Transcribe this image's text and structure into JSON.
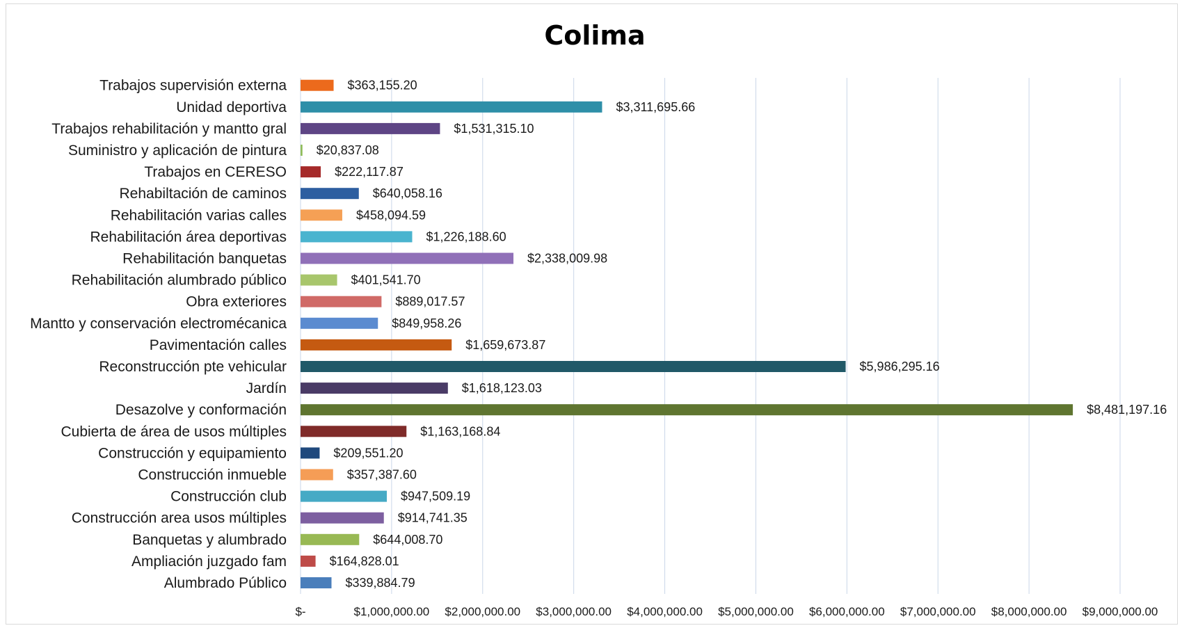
{
  "chart_data": {
    "type": "bar",
    "orientation": "horizontal",
    "title": "Colima",
    "xlabel": "",
    "ylabel": "",
    "xlim": [
      0,
      9000000
    ],
    "grid": "vertical",
    "legend": "none",
    "categories": [
      "Alumbrado Público",
      "Ampliación juzgado fam",
      "Banquetas y alumbrado",
      "Construcción area usos múltiples",
      "Construcción club",
      "Construcción inmueble",
      "Construcción y equipamiento",
      "Cubierta de área de usos múltiples",
      "Desazolve y conformación",
      "Jardín",
      "Reconstrucción pte vehicular",
      "Pavimentación calles",
      "Mantto y conservación electromécanica",
      "Obra exteriores",
      "Rehabilitación alumbrado público",
      "Rehabilitación banquetas",
      "Rehabilitación área deportivas",
      "Rehabilitación varias calles",
      "Rehabiltación de caminos",
      "Trabajos en CERESO",
      "Suministro y aplicación de pintura",
      "Trabajos rehabilitación y mantto gral",
      "Unidad deportiva",
      "Trabajos supervisión externa"
    ],
    "values": [
      339884.79,
      164828.01,
      644008.7,
      914741.35,
      947509.19,
      357387.6,
      209551.2,
      1163168.84,
      8481197.16,
      1618123.03,
      5986295.16,
      1659673.87,
      849958.26,
      889017.57,
      401541.7,
      2338009.98,
      1226188.6,
      458094.59,
      640058.16,
      222117.87,
      20837.08,
      1531315.1,
      3311695.66,
      363155.2
    ],
    "data_labels": [
      "$339,884.79",
      "$164,828.01",
      "$644,008.70",
      "$914,741.35",
      "$947,509.19",
      "$357,387.60",
      "$209,551.20",
      "$1,163,168.84",
      "$8,481,197.16",
      "$1,618,123.03",
      "$5,986,295.16",
      "$1,659,673.87",
      "$849,958.26",
      "$889,017.57",
      "$401,541.70",
      "$2,338,009.98",
      "$1,226,188.60",
      "$458,094.59",
      "$640,058.16",
      "$222,117.87",
      "$20,837.08",
      "$1,531,315.10",
      "$3,311,695.66",
      "$363,155.20"
    ],
    "colors": [
      "#4a7ebb",
      "#be4b48",
      "#98b954",
      "#7d5fa0",
      "#46aac5",
      "#f59d56",
      "#1f497d",
      "#7f2b29",
      "#5f7530",
      "#4a3b66",
      "#215968",
      "#c55a11",
      "#5b8bd0",
      "#d06a67",
      "#a8c66c",
      "#9070b8",
      "#4ab4cf",
      "#f5a055",
      "#2d5ea0",
      "#a52a2a",
      "#8fbc5a",
      "#5e4585",
      "#2e8fa8",
      "#ec6a1c"
    ],
    "x_ticks": [
      0,
      1000000,
      2000000,
      3000000,
      4000000,
      5000000,
      6000000,
      7000000,
      8000000,
      9000000
    ],
    "x_tick_labels": [
      "$-",
      "$1,000,000.00",
      "$2,000,000.00",
      "$3,000,000.00",
      "$4,000,000.00",
      "$5,000,000.00",
      "$6,000,000.00",
      "$7,000,000.00",
      "$8,000,000.00",
      "$9,000,000.00"
    ]
  }
}
